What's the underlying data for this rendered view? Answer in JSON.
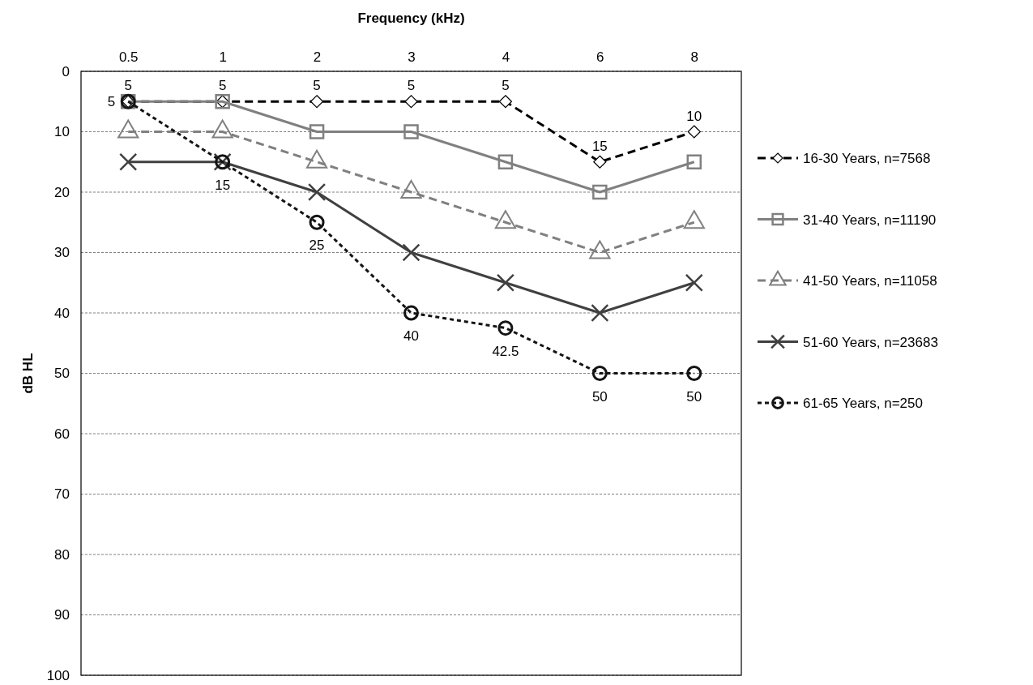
{
  "chart_data": {
    "type": "line",
    "xlabel": "Frequency (kHz)",
    "ylabel": "dB HL",
    "categories": [
      "0.5",
      "1",
      "2",
      "3",
      "4",
      "6",
      "8"
    ],
    "ylim": [
      100,
      0
    ],
    "yticks": [
      0,
      10,
      20,
      30,
      40,
      50,
      60,
      70,
      80,
      90,
      100
    ],
    "grid": "y",
    "legend": "right",
    "series": [
      {
        "name": "16-30 Years, n=7568",
        "color": "#000000",
        "marker": "diamond",
        "line_style": "dashed",
        "values": [
          5,
          5,
          5,
          5,
          5,
          15,
          10
        ],
        "value_labels": [
          "5",
          "5",
          "5",
          "5",
          "5",
          "15",
          "10"
        ]
      },
      {
        "name": "31-40 Years, n=11190",
        "color": "#808080",
        "marker": "square",
        "line_style": "solid",
        "values": [
          5,
          5,
          10,
          10,
          15,
          20,
          15
        ]
      },
      {
        "name": "41-50 Years, n=11058",
        "color": "#808080",
        "marker": "triangle",
        "line_style": "dashed",
        "values": [
          10,
          10,
          15,
          20,
          25,
          30,
          25
        ]
      },
      {
        "name": "51-60 Years, n=23683",
        "color": "#404040",
        "marker": "cross",
        "line_style": "solid",
        "values": [
          15,
          15,
          20,
          30,
          35,
          40,
          35
        ]
      },
      {
        "name": "61-65 Years, n=250",
        "color": "#141414",
        "marker": "circle",
        "line_style": "dotted",
        "values": [
          5,
          15,
          25,
          40,
          42.5,
          50,
          50
        ],
        "value_labels": [
          "5",
          "15",
          "25",
          "40",
          "42.5",
          "50",
          "50"
        ]
      }
    ]
  }
}
